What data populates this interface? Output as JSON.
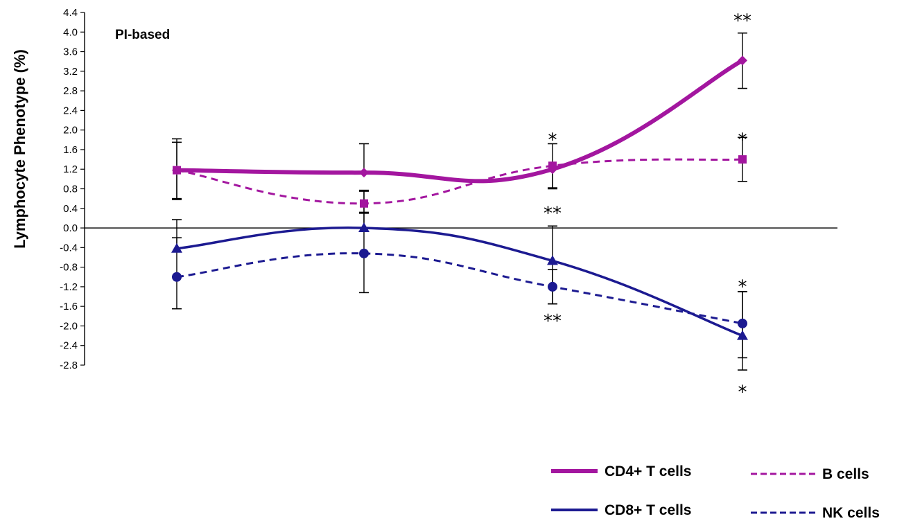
{
  "colors": {
    "magenta": "#A3169F",
    "navy": "#1C1A91",
    "axis": "#000000"
  },
  "chart_data": {
    "type": "line",
    "title": "",
    "xlabel": "",
    "ylabel": "Lymphocyte Phenotype (%)",
    "panel_label": "PI-based",
    "ylim": [
      -2.8,
      4.4
    ],
    "ytick_step": 0.4,
    "yticks": [
      "4.4",
      "4.0",
      "3.6",
      "3.2",
      "2.8",
      "2.4",
      "2.0",
      "1.6",
      "1.2",
      "0.8",
      "0.4",
      "0.0",
      "-0.4",
      "-0.8",
      "-1.2",
      "-1.6",
      "-2.0",
      "-2.4",
      "-2.8"
    ],
    "x": [
      1,
      2,
      3,
      4
    ],
    "grid": false,
    "legend_position": "bottom-right",
    "series": [
      {
        "name": "CD4+ T cells",
        "color": "#A3169F",
        "line": "solid",
        "marker": "diamond",
        "values": [
          1.18,
          1.13,
          1.2,
          3.42
        ],
        "err_low": [
          0.58,
          null,
          0.82,
          2.85
        ],
        "err_high": [
          1.82,
          1.72,
          1.72,
          3.98
        ]
      },
      {
        "name": "B cells",
        "color": "#A3169F",
        "line": "dashed",
        "marker": "square",
        "values": [
          1.18,
          0.5,
          1.27,
          1.4
        ],
        "err_low": [
          0.6,
          0.32,
          0.8,
          0.95
        ],
        "err_high": [
          1.75,
          0.77,
          null,
          1.85
        ]
      },
      {
        "name": "CD8+ T cells",
        "color": "#1C1A91",
        "line": "solid",
        "marker": "triangle",
        "values": [
          -0.42,
          0.0,
          -0.67,
          -2.2
        ],
        "err_low": [
          null,
          null,
          -1.55,
          -2.65
        ],
        "err_high": [
          0.17,
          0.75,
          0.04,
          -1.3
        ]
      },
      {
        "name": "NK cells",
        "color": "#1C1A91",
        "line": "dashed",
        "marker": "circle",
        "values": [
          -1.0,
          -0.52,
          -1.2,
          -1.95
        ],
        "err_low": [
          -1.65,
          -1.32,
          -1.55,
          -2.9
        ],
        "err_high": [
          -0.2,
          0.3,
          -0.85,
          -1.3
        ]
      }
    ],
    "annotations": [
      {
        "text": "**",
        "x": 4,
        "y": 4.28
      },
      {
        "text": "*",
        "x": 3,
        "y": 1.85
      },
      {
        "text": "*",
        "x": 4,
        "y": 1.85
      },
      {
        "text": "**",
        "x": 3,
        "y": 0.35
      },
      {
        "text": "*",
        "x": 4,
        "y": -1.15
      },
      {
        "text": "**",
        "x": 3,
        "y": -1.85
      },
      {
        "text": "*",
        "x": 4,
        "y": -3.3
      }
    ]
  }
}
